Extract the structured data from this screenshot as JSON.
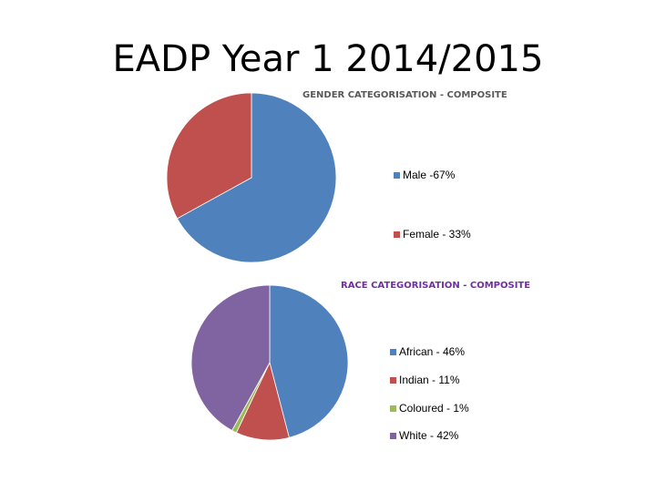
{
  "slide_title": "EADP Year 1 2014/2015",
  "chart_data": [
    {
      "type": "pie",
      "title": "GENDER CATEGORISATION - COMPOSITE",
      "categories": [
        "Male",
        "Female"
      ],
      "values": [
        67,
        33
      ],
      "legend_labels": [
        "Male -67%",
        "Female - 33%"
      ],
      "colors": [
        "#4f81bd",
        "#c0504d"
      ],
      "legend": "right"
    },
    {
      "type": "pie",
      "title": "RACE CATEGORISATION - COMPOSITE",
      "categories": [
        "African",
        "Indian",
        "Coloured",
        "White"
      ],
      "values": [
        46,
        11,
        1,
        42
      ],
      "legend_labels": [
        "African - 46%",
        "Indian - 11%",
        "Coloured - 1%",
        "White - 42%"
      ],
      "colors": [
        "#4f81bd",
        "#c0504d",
        "#9bbb59",
        "#8064a2"
      ],
      "legend": "right"
    }
  ]
}
